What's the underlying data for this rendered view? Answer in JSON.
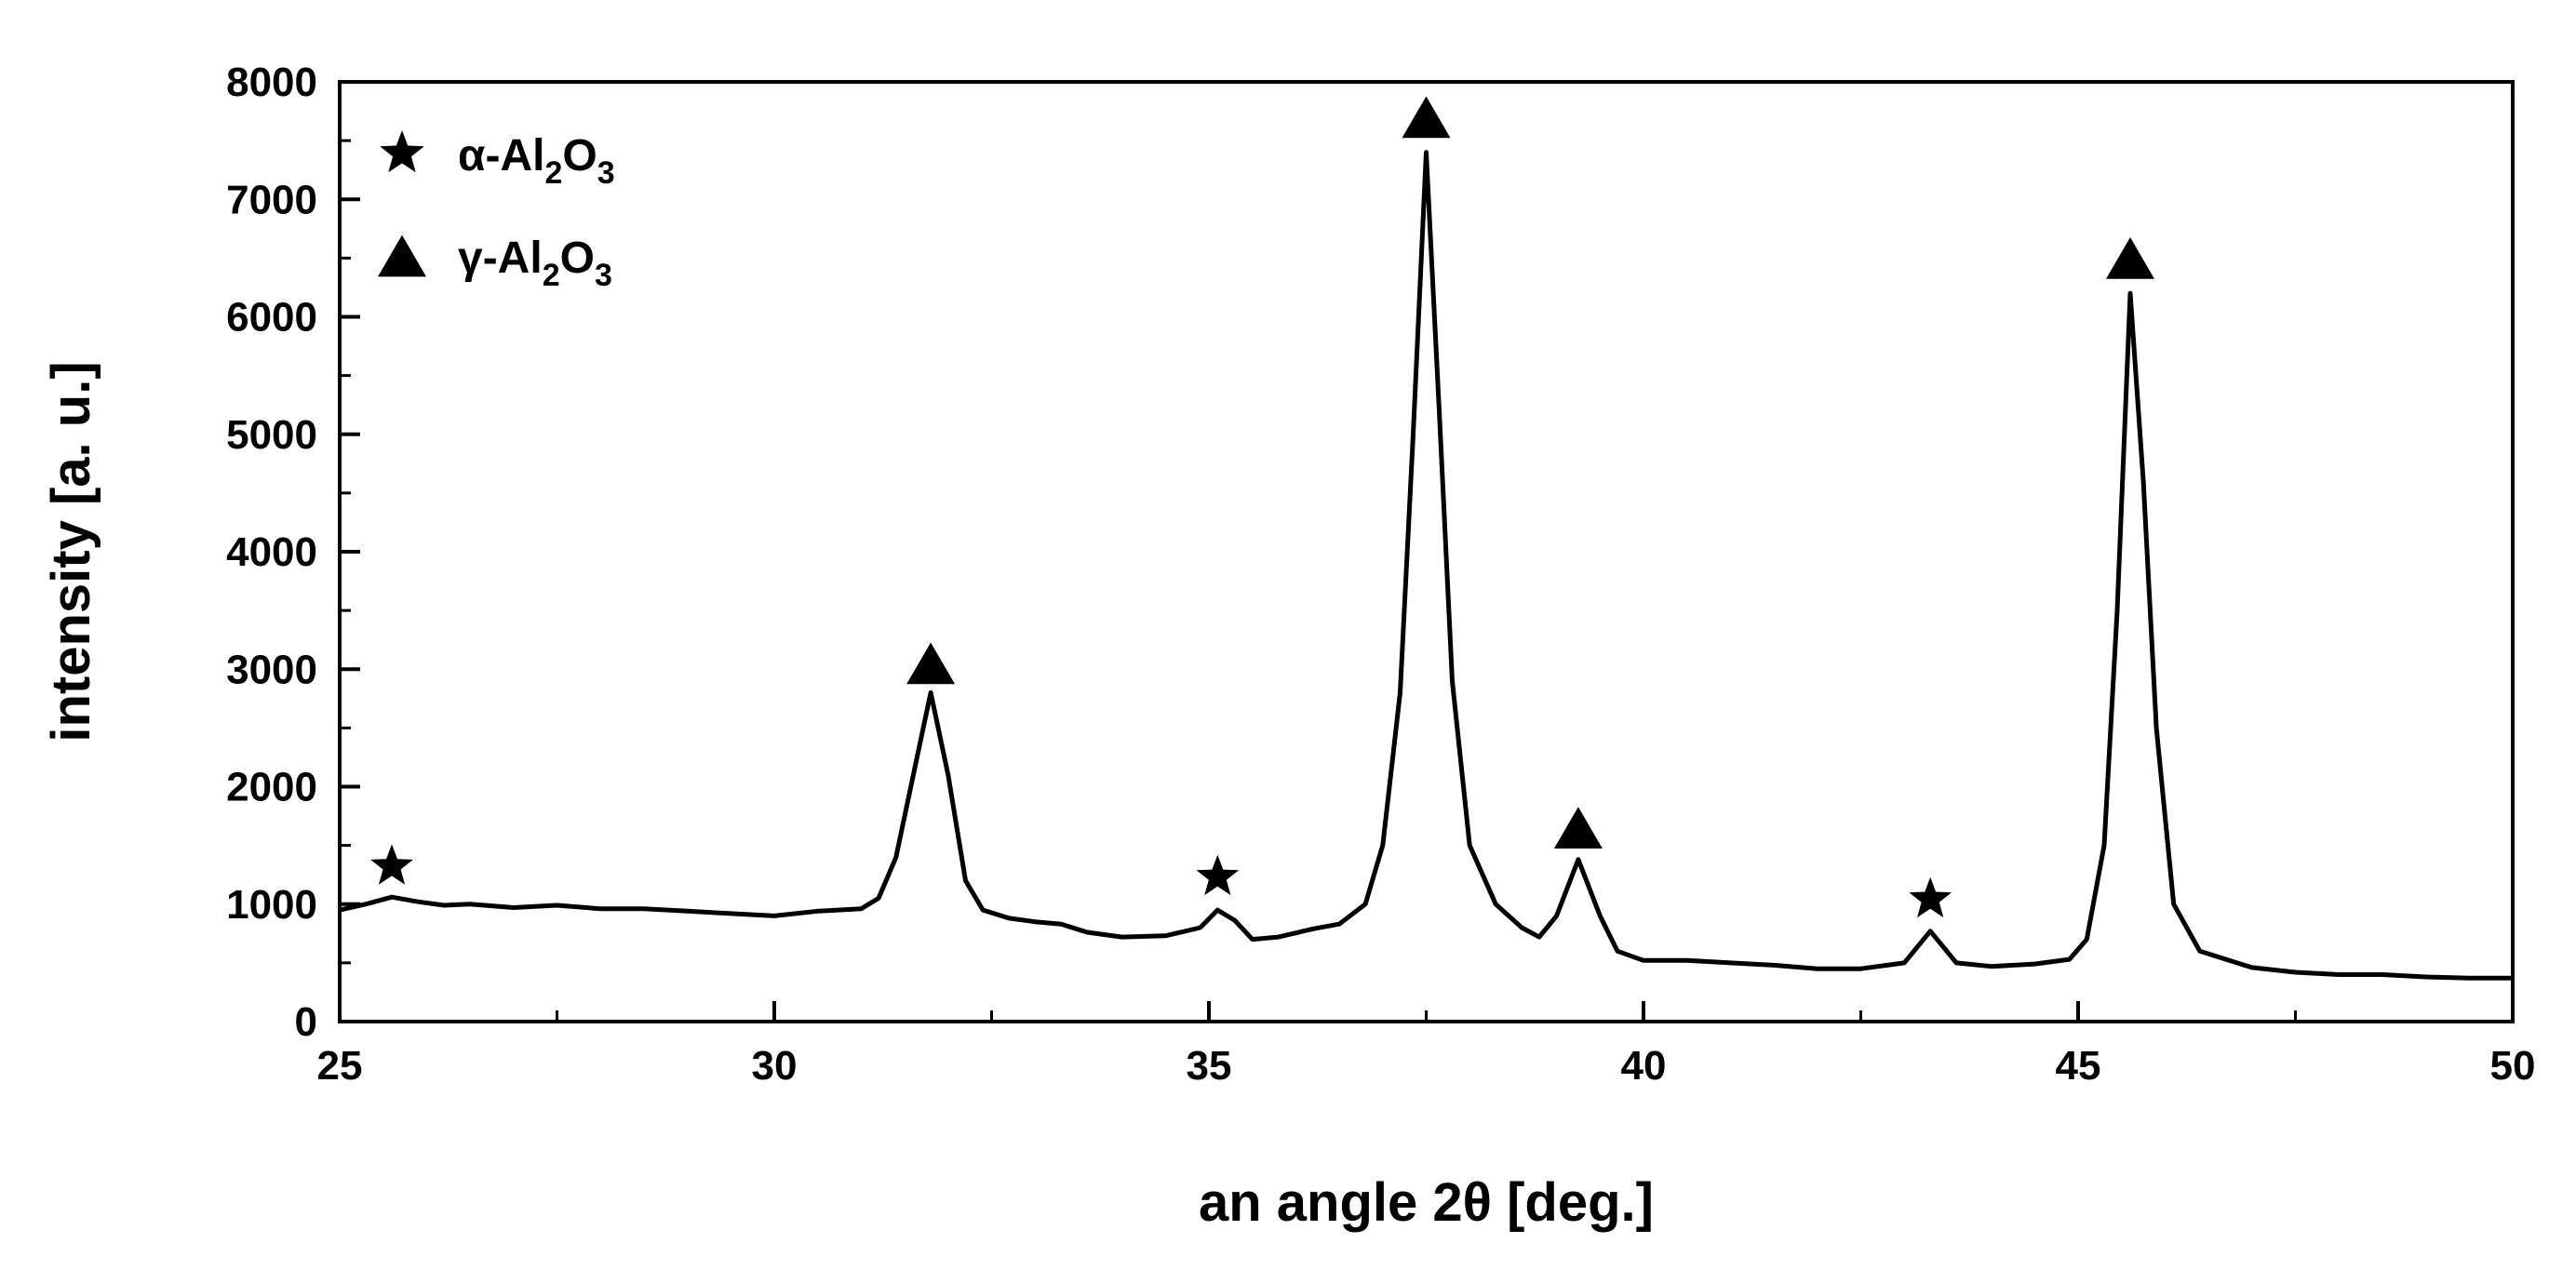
{
  "chart_data": {
    "type": "line",
    "title": "",
    "xlabel": "an angle 2θ [deg.]",
    "ylabel": "intensity [a. u.]",
    "xlim": [
      25,
      50
    ],
    "ylim": [
      0,
      8000
    ],
    "x_ticks": [
      25,
      30,
      35,
      40,
      45,
      50
    ],
    "y_ticks": [
      0,
      1000,
      2000,
      3000,
      4000,
      5000,
      6000,
      7000,
      8000
    ],
    "grid": false,
    "legend_position": "top-left",
    "legend": [
      {
        "marker": "star",
        "prefix": "α-Al",
        "sub1": "2",
        "mid": "O",
        "sub2": "3"
      },
      {
        "marker": "triangle",
        "prefix": "γ-Al",
        "sub1": "2",
        "mid": "O",
        "sub2": "3"
      }
    ],
    "series": [
      {
        "color": "#000000",
        "points": [
          [
            25.0,
            950
          ],
          [
            25.3,
            1000
          ],
          [
            25.6,
            1060
          ],
          [
            25.9,
            1020
          ],
          [
            26.2,
            990
          ],
          [
            26.5,
            1000
          ],
          [
            27.0,
            970
          ],
          [
            27.5,
            990
          ],
          [
            28.0,
            960
          ],
          [
            28.5,
            960
          ],
          [
            29.0,
            940
          ],
          [
            29.5,
            920
          ],
          [
            30.0,
            900
          ],
          [
            30.5,
            940
          ],
          [
            31.0,
            960
          ],
          [
            31.2,
            1050
          ],
          [
            31.4,
            1400
          ],
          [
            31.6,
            2100
          ],
          [
            31.8,
            2800
          ],
          [
            32.0,
            2100
          ],
          [
            32.2,
            1200
          ],
          [
            32.4,
            950
          ],
          [
            32.7,
            880
          ],
          [
            33.0,
            850
          ],
          [
            33.3,
            830
          ],
          [
            33.6,
            760
          ],
          [
            34.0,
            720
          ],
          [
            34.5,
            730
          ],
          [
            34.9,
            800
          ],
          [
            35.1,
            950
          ],
          [
            35.3,
            860
          ],
          [
            35.5,
            700
          ],
          [
            35.8,
            720
          ],
          [
            36.2,
            790
          ],
          [
            36.5,
            830
          ],
          [
            36.8,
            1000
          ],
          [
            37.0,
            1500
          ],
          [
            37.2,
            2800
          ],
          [
            37.35,
            5000
          ],
          [
            37.5,
            7400
          ],
          [
            37.65,
            5200
          ],
          [
            37.8,
            2900
          ],
          [
            38.0,
            1500
          ],
          [
            38.3,
            1000
          ],
          [
            38.6,
            800
          ],
          [
            38.8,
            720
          ],
          [
            39.0,
            900
          ],
          [
            39.25,
            1380
          ],
          [
            39.5,
            900
          ],
          [
            39.7,
            600
          ],
          [
            40.0,
            520
          ],
          [
            40.5,
            520
          ],
          [
            41.0,
            500
          ],
          [
            41.5,
            480
          ],
          [
            42.0,
            450
          ],
          [
            42.5,
            450
          ],
          [
            43.0,
            500
          ],
          [
            43.3,
            770
          ],
          [
            43.6,
            500
          ],
          [
            44.0,
            470
          ],
          [
            44.5,
            490
          ],
          [
            44.9,
            530
          ],
          [
            45.1,
            700
          ],
          [
            45.3,
            1500
          ],
          [
            45.45,
            3500
          ],
          [
            45.6,
            6200
          ],
          [
            45.75,
            4600
          ],
          [
            45.9,
            2500
          ],
          [
            46.1,
            1000
          ],
          [
            46.4,
            600
          ],
          [
            47.0,
            460
          ],
          [
            47.5,
            420
          ],
          [
            48.0,
            400
          ],
          [
            48.5,
            400
          ],
          [
            49.0,
            380
          ],
          [
            49.5,
            370
          ],
          [
            50.0,
            370
          ]
        ]
      }
    ],
    "annotations": [
      {
        "marker": "star",
        "x": 25.6,
        "y": 1320
      },
      {
        "marker": "triangle",
        "x": 31.8,
        "y": 3050
      },
      {
        "marker": "star",
        "x": 35.1,
        "y": 1230
      },
      {
        "marker": "triangle",
        "x": 37.5,
        "y": 7700
      },
      {
        "marker": "triangle",
        "x": 39.25,
        "y": 1650
      },
      {
        "marker": "star",
        "x": 43.3,
        "y": 1040
      },
      {
        "marker": "triangle",
        "x": 45.6,
        "y": 6500
      }
    ]
  }
}
